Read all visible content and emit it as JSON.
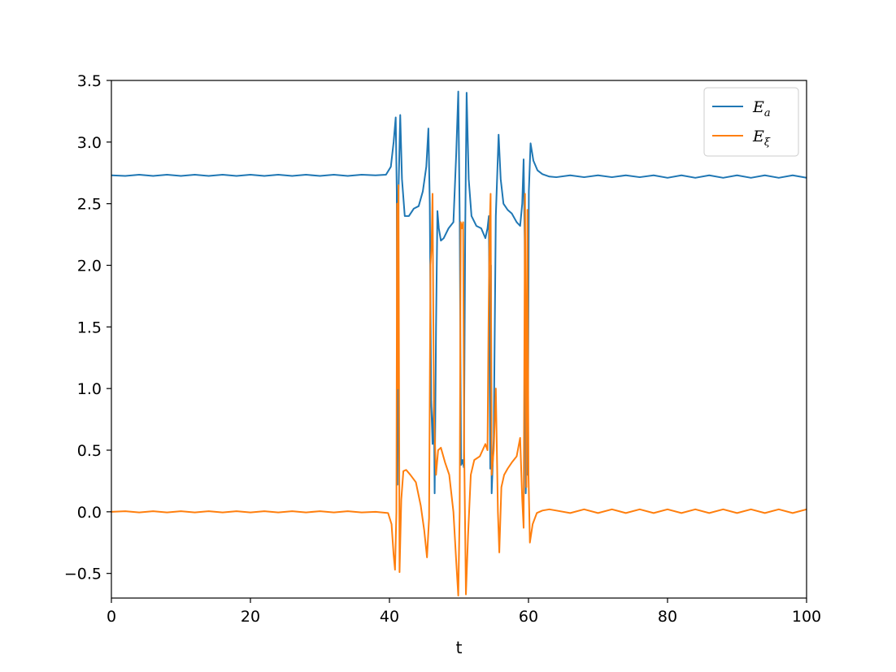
{
  "chart_data": {
    "type": "line",
    "title": "",
    "xlabel": "t",
    "ylabel": "",
    "xlim": [
      0,
      100
    ],
    "ylim": [
      -0.7,
      3.5
    ],
    "x_ticks": [
      "0",
      "20",
      "40",
      "60",
      "80",
      "100"
    ],
    "x_tick_values": [
      0,
      20,
      40,
      60,
      80,
      100
    ],
    "y_ticks": [
      "−0.5",
      "0.0",
      "0.5",
      "1.0",
      "1.5",
      "2.0",
      "2.5",
      "3.0",
      "3.5"
    ],
    "y_tick_values": [
      -0.5,
      0.0,
      0.5,
      1.0,
      1.5,
      2.0,
      2.5,
      3.0,
      3.5
    ],
    "grid": false,
    "legend_position": "top-right",
    "series": [
      {
        "name": "E_a",
        "legend_main": "E",
        "legend_sub": "a",
        "color": "#1f77b4",
        "points": [
          [
            0,
            2.73
          ],
          [
            2,
            2.725
          ],
          [
            4,
            2.735
          ],
          [
            6,
            2.725
          ],
          [
            8,
            2.735
          ],
          [
            10,
            2.725
          ],
          [
            12,
            2.735
          ],
          [
            14,
            2.725
          ],
          [
            16,
            2.735
          ],
          [
            18,
            2.725
          ],
          [
            20,
            2.735
          ],
          [
            22,
            2.725
          ],
          [
            24,
            2.735
          ],
          [
            26,
            2.725
          ],
          [
            28,
            2.735
          ],
          [
            30,
            2.725
          ],
          [
            32,
            2.735
          ],
          [
            34,
            2.725
          ],
          [
            36,
            2.735
          ],
          [
            38,
            2.73
          ],
          [
            39.5,
            2.735
          ],
          [
            40.2,
            2.8
          ],
          [
            40.6,
            3.0
          ],
          [
            40.9,
            3.2
          ],
          [
            41.05,
            2.6
          ],
          [
            41.15,
            0.22
          ],
          [
            41.3,
            2.6
          ],
          [
            41.55,
            3.22
          ],
          [
            41.8,
            2.7
          ],
          [
            42.2,
            2.4
          ],
          [
            42.8,
            2.4
          ],
          [
            43.5,
            2.46
          ],
          [
            44.2,
            2.48
          ],
          [
            44.8,
            2.6
          ],
          [
            45.3,
            2.8
          ],
          [
            45.6,
            3.11
          ],
          [
            45.8,
            2.5
          ],
          [
            46.0,
            0.9
          ],
          [
            46.2,
            0.55
          ],
          [
            46.4,
            0.9
          ],
          [
            46.5,
            0.15
          ],
          [
            46.7,
            1.5
          ],
          [
            46.9,
            2.44
          ],
          [
            47.1,
            2.3
          ],
          [
            47.4,
            2.2
          ],
          [
            47.8,
            2.22
          ],
          [
            48.5,
            2.3
          ],
          [
            49.2,
            2.35
          ],
          [
            49.6,
            2.9
          ],
          [
            49.9,
            3.41
          ],
          [
            50.1,
            2.4
          ],
          [
            50.3,
            0.38
          ],
          [
            50.5,
            0.42
          ],
          [
            50.7,
            0.36
          ],
          [
            50.9,
            2.3
          ],
          [
            51.1,
            3.4
          ],
          [
            51.4,
            2.7
          ],
          [
            51.8,
            2.4
          ],
          [
            52.5,
            2.32
          ],
          [
            53.2,
            2.3
          ],
          [
            53.8,
            2.22
          ],
          [
            54.1,
            2.3
          ],
          [
            54.3,
            2.4
          ],
          [
            54.5,
            0.35
          ],
          [
            54.6,
            2.0
          ],
          [
            54.7,
            0.15
          ],
          [
            55.0,
            0.6
          ],
          [
            55.3,
            2.4
          ],
          [
            55.7,
            3.06
          ],
          [
            56.0,
            2.7
          ],
          [
            56.4,
            2.5
          ],
          [
            57.0,
            2.45
          ],
          [
            57.6,
            2.42
          ],
          [
            58.3,
            2.35
          ],
          [
            58.8,
            2.32
          ],
          [
            59.1,
            2.5
          ],
          [
            59.3,
            2.86
          ],
          [
            59.45,
            2.2
          ],
          [
            59.6,
            0.15
          ],
          [
            59.75,
            0.4
          ],
          [
            59.9,
            0.3
          ],
          [
            60.05,
            2.6
          ],
          [
            60.3,
            2.99
          ],
          [
            60.7,
            2.85
          ],
          [
            61.3,
            2.77
          ],
          [
            62,
            2.74
          ],
          [
            63,
            2.72
          ],
          [
            64,
            2.715
          ],
          [
            66,
            2.73
          ],
          [
            68,
            2.715
          ],
          [
            70,
            2.73
          ],
          [
            72,
            2.715
          ],
          [
            74,
            2.73
          ],
          [
            76,
            2.715
          ],
          [
            78,
            2.73
          ],
          [
            80,
            2.71
          ],
          [
            82,
            2.73
          ],
          [
            84,
            2.71
          ],
          [
            86,
            2.73
          ],
          [
            88,
            2.71
          ],
          [
            90,
            2.73
          ],
          [
            92,
            2.71
          ],
          [
            94,
            2.73
          ],
          [
            96,
            2.71
          ],
          [
            98,
            2.73
          ],
          [
            100,
            2.71
          ]
        ]
      },
      {
        "name": "E_ξ",
        "legend_main": "E",
        "legend_sub": "ξ",
        "color": "#ff7f0e",
        "points": [
          [
            0,
            0.0
          ],
          [
            2,
            0.005
          ],
          [
            4,
            -0.005
          ],
          [
            6,
            0.005
          ],
          [
            8,
            -0.005
          ],
          [
            10,
            0.005
          ],
          [
            12,
            -0.005
          ],
          [
            14,
            0.005
          ],
          [
            16,
            -0.005
          ],
          [
            18,
            0.005
          ],
          [
            20,
            -0.005
          ],
          [
            22,
            0.005
          ],
          [
            24,
            -0.005
          ],
          [
            26,
            0.005
          ],
          [
            28,
            -0.005
          ],
          [
            30,
            0.005
          ],
          [
            32,
            -0.005
          ],
          [
            34,
            0.005
          ],
          [
            36,
            -0.005
          ],
          [
            38,
            0.0
          ],
          [
            39.8,
            -0.01
          ],
          [
            40.3,
            -0.1
          ],
          [
            40.6,
            -0.35
          ],
          [
            40.8,
            -0.47
          ],
          [
            41.0,
            0.0
          ],
          [
            41.1,
            2.5
          ],
          [
            41.2,
            1.0
          ],
          [
            41.3,
            2.65
          ],
          [
            41.45,
            -0.49
          ],
          [
            41.7,
            0.1
          ],
          [
            42.0,
            0.33
          ],
          [
            42.4,
            0.34
          ],
          [
            43.0,
            0.3
          ],
          [
            43.8,
            0.24
          ],
          [
            44.5,
            0.05
          ],
          [
            45.0,
            -0.15
          ],
          [
            45.4,
            -0.37
          ],
          [
            45.7,
            -0.05
          ],
          [
            45.9,
            2.0
          ],
          [
            46.05,
            2.15
          ],
          [
            46.2,
            2.58
          ],
          [
            46.4,
            0.8
          ],
          [
            46.7,
            0.3
          ],
          [
            47.0,
            0.5
          ],
          [
            47.4,
            0.52
          ],
          [
            48.0,
            0.4
          ],
          [
            48.6,
            0.3
          ],
          [
            49.2,
            0.0
          ],
          [
            49.6,
            -0.4
          ],
          [
            49.9,
            -0.68
          ],
          [
            50.1,
            0.0
          ],
          [
            50.25,
            2.35
          ],
          [
            50.4,
            2.3
          ],
          [
            50.6,
            2.35
          ],
          [
            50.75,
            0.5
          ],
          [
            51.0,
            -0.67
          ],
          [
            51.3,
            -0.2
          ],
          [
            51.7,
            0.3
          ],
          [
            52.2,
            0.42
          ],
          [
            53.0,
            0.45
          ],
          [
            53.8,
            0.55
          ],
          [
            54.1,
            0.5
          ],
          [
            54.25,
            1.5
          ],
          [
            54.4,
            2.3
          ],
          [
            54.55,
            2.58
          ],
          [
            54.7,
            0.3
          ],
          [
            55.0,
            0.5
          ],
          [
            55.3,
            1.0
          ],
          [
            55.6,
            0.0
          ],
          [
            55.8,
            -0.33
          ],
          [
            56.1,
            0.2
          ],
          [
            56.5,
            0.3
          ],
          [
            57.0,
            0.35
          ],
          [
            57.6,
            0.4
          ],
          [
            58.3,
            0.45
          ],
          [
            58.8,
            0.6
          ],
          [
            59.1,
            0.1
          ],
          [
            59.3,
            -0.13
          ],
          [
            59.5,
            2.58
          ],
          [
            59.7,
            0.2
          ],
          [
            59.85,
            2.45
          ],
          [
            60.0,
            0.3
          ],
          [
            60.2,
            -0.25
          ],
          [
            60.6,
            -0.1
          ],
          [
            61.2,
            -0.01
          ],
          [
            62,
            0.01
          ],
          [
            63,
            0.02
          ],
          [
            64,
            0.01
          ],
          [
            66,
            -0.01
          ],
          [
            68,
            0.02
          ],
          [
            70,
            -0.01
          ],
          [
            72,
            0.02
          ],
          [
            74,
            -0.01
          ],
          [
            76,
            0.02
          ],
          [
            78,
            -0.01
          ],
          [
            80,
            0.02
          ],
          [
            82,
            -0.01
          ],
          [
            84,
            0.02
          ],
          [
            86,
            -0.01
          ],
          [
            88,
            0.02
          ],
          [
            90,
            -0.01
          ],
          [
            92,
            0.02
          ],
          [
            94,
            -0.01
          ],
          [
            96,
            0.02
          ],
          [
            98,
            -0.01
          ],
          [
            100,
            0.02
          ]
        ]
      }
    ]
  }
}
